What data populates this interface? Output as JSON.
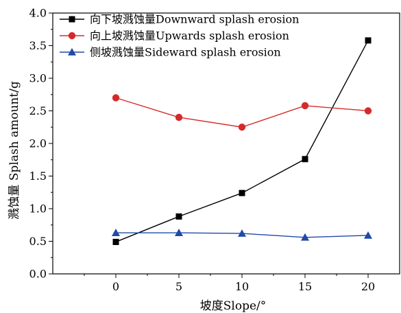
{
  "chart_data": {
    "type": "line",
    "title": "",
    "xlabel": "坡度Slope/°",
    "ylabel": "溅蚀量 Splash amount/g",
    "x": [
      0,
      5,
      10,
      15,
      20
    ],
    "xlim": [
      -5,
      22.5
    ],
    "ylim": [
      0,
      4
    ],
    "xticks": [
      "0",
      "5",
      "10",
      "15",
      "20"
    ],
    "yticks": [
      "0.0",
      "0.5",
      "1.0",
      "1.5",
      "2.0",
      "2.5",
      "3.0",
      "3.5",
      "4.0"
    ],
    "legend_position": "top-left",
    "grid": false,
    "series": [
      {
        "name": "向下坡溅蚀量Downward splash erosion",
        "color": "#000000",
        "marker": "square",
        "values": [
          0.49,
          0.88,
          1.24,
          1.76,
          3.58
        ]
      },
      {
        "name": "向上坡溅蚀量Upwards splash erosion",
        "color": "#d62a2a",
        "marker": "circle",
        "values": [
          2.7,
          2.4,
          2.25,
          2.58,
          2.5
        ]
      },
      {
        "name": "侧坡溅蚀量Sideward splash erosion",
        "color": "#1f4aa8",
        "marker": "triangle",
        "values": [
          0.63,
          0.63,
          0.62,
          0.56,
          0.59
        ]
      }
    ]
  }
}
